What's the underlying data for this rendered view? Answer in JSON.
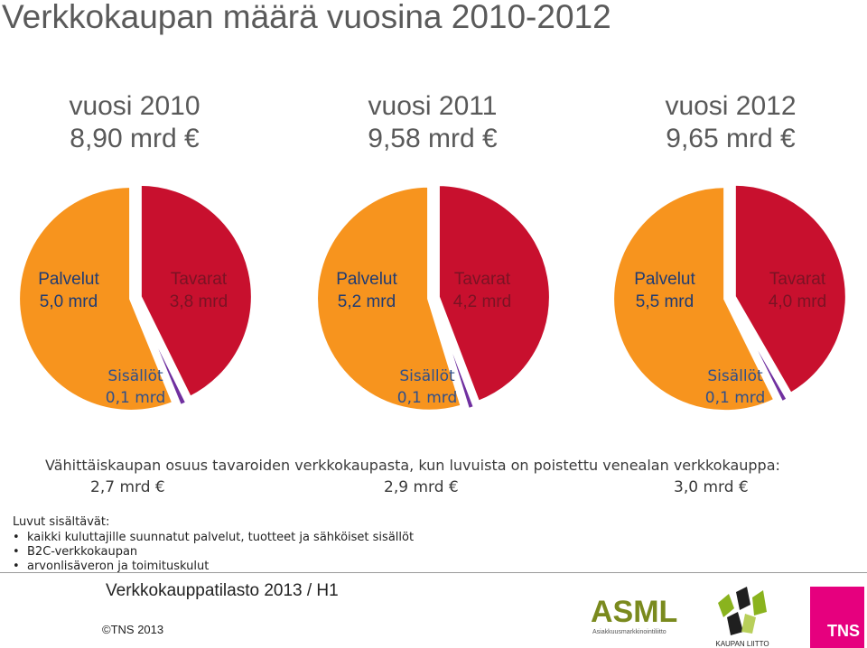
{
  "title": "Verkkokaupan määrä vuosina 2010-2012",
  "chart_data": [
    {
      "type": "pie",
      "title": "vuosi 2010",
      "total": "8,90 mrd €",
      "slices": [
        {
          "name": "Tavarat",
          "value": 3.8,
          "label": "3,8 mrd",
          "color": "#c8102e"
        },
        {
          "name": "Sisällöt",
          "value": 0.1,
          "label": "0,1 mrd",
          "color": "#7030a0"
        },
        {
          "name": "Palvelut",
          "value": 5.0,
          "label": "5,0 mrd",
          "color": "#f7941e"
        }
      ]
    },
    {
      "type": "pie",
      "title": "vuosi 2011",
      "total": "9,58 mrd €",
      "slices": [
        {
          "name": "Tavarat",
          "value": 4.2,
          "label": "4,2 mrd",
          "color": "#c8102e"
        },
        {
          "name": "Sisällöt",
          "value": 0.1,
          "label": "0,1 mrd",
          "color": "#7030a0"
        },
        {
          "name": "Palvelut",
          "value": 5.2,
          "label": "5,2 mrd",
          "color": "#f7941e"
        }
      ]
    },
    {
      "type": "pie",
      "title": "vuosi 2012",
      "total": "9,65 mrd €",
      "slices": [
        {
          "name": "Tavarat",
          "value": 4.0,
          "label": "4,0 mrd",
          "color": "#c8102e"
        },
        {
          "name": "Sisällöt",
          "value": 0.1,
          "label": "0,1 mrd",
          "color": "#7030a0"
        },
        {
          "name": "Palvelut",
          "value": 5.5,
          "label": "5,5 mrd",
          "color": "#f7941e"
        }
      ]
    }
  ],
  "retail": {
    "description": "Vähittäiskaupan osuus tavaroiden verkkokaupasta, kun luvuista on poistettu venealan verkkokauppa:",
    "values": [
      "2,7 mrd €",
      "2,9 mrd €",
      "3,0 mrd €"
    ]
  },
  "includes": {
    "title": "Luvut sisältävät:",
    "items": [
      "kaikki kuluttajille suunnatut palvelut, tuotteet ja sähköiset sisällöt",
      "B2C-verkkokaupan",
      "arvonlisäveron ja toimituskulut"
    ]
  },
  "footer": {
    "source": "Verkkokauppatilasto 2013 / H1",
    "copyright": "©TNS 2013"
  },
  "logos": {
    "asml": "ASML",
    "asml_sub": "Asiakkuusmarkkinointiliitto",
    "kaupan_liitto": "KAUPAN LIITTO",
    "tns": "TNS"
  }
}
